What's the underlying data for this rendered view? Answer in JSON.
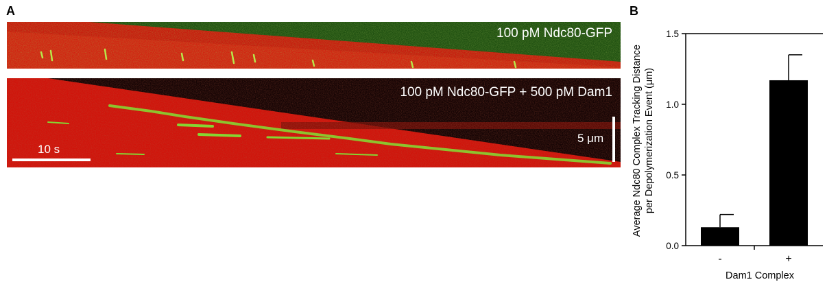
{
  "panel_a": {
    "letter": "A",
    "top_label": "100 pM Ndc80-GFP",
    "bottom_label": "100 pM Ndc80-GFP + 500 pM Dam1",
    "time_scale_label": "10 s",
    "distance_scale_label": "5 μm",
    "colors": {
      "red": "#d4140c",
      "green": "#5fd11c",
      "dark": "#120404"
    }
  },
  "panel_b": {
    "letter": "B"
  },
  "chart_data": {
    "type": "bar",
    "categories": [
      "-",
      "+"
    ],
    "values": [
      0.13,
      1.17
    ],
    "errors": [
      0.09,
      0.18
    ],
    "xlabel": "Dam1  Complex",
    "ylabel": "Average Ndc80 Complex Tracking Distance per Depolymerization Event (μm)",
    "ylabel_line1": "Average Ndc80 Complex Tracking Distance",
    "ylabel_line2": "per Depolymerization Event (μm)",
    "yticks": [
      "0.0",
      "0.5",
      "1.0",
      "1.5"
    ],
    "ytick_values": [
      0,
      0.5,
      1.0,
      1.5
    ],
    "ylim": [
      0,
      1.5
    ],
    "bar_color": "#000000",
    "grid": false
  }
}
